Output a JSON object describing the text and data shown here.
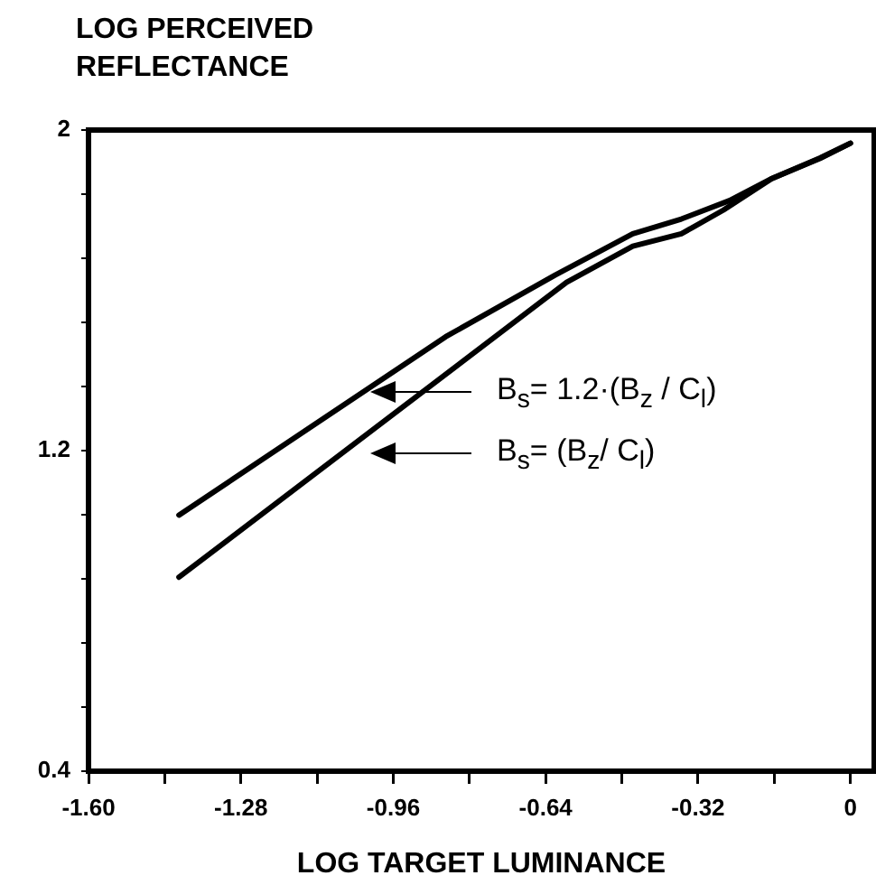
{
  "chart_data": {
    "type": "line",
    "xlabel": "LOG TARGET LUMINANCE",
    "ylabel": "LOG PERCEIVED REFLECTANCE",
    "xlim": [
      -1.6,
      0.05
    ],
    "ylim": [
      0.4,
      2
    ],
    "xticks": [
      {
        "value": -1.6,
        "label": "-1.60"
      },
      {
        "value": -1.44,
        "label": null
      },
      "-1.28",
      {
        "value": -1.12,
        "label": null
      },
      -0.96,
      {
        "value": -0.8,
        "label": null
      },
      -0.64,
      {
        "value": -0.48,
        "label": null
      },
      -0.32,
      {
        "value": -0.16,
        "label": null
      },
      0
    ],
    "yticks": [
      0.4,
      {
        "value": 0.56,
        "label": null
      },
      {
        "value": 0.72,
        "label": null
      },
      {
        "value": 0.88,
        "label": null
      },
      {
        "value": 1.04,
        "label": null
      },
      1.2,
      {
        "value": 1.36,
        "label": null
      },
      {
        "value": 1.52,
        "label": null
      },
      {
        "value": 1.68,
        "label": null
      },
      {
        "value": 1.84,
        "label": null
      },
      2
    ],
    "grid": false,
    "legend": false,
    "marker": "none",
    "line_style": "solid",
    "series": [
      {
        "color": "#000000",
        "x": [
          -1.41,
          -0.85,
          -0.62,
          -0.457,
          -0.355,
          -0.254,
          -0.165,
          -0.064,
          0
        ],
        "values": [
          1.039,
          1.484,
          1.638,
          1.741,
          1.778,
          1.824,
          1.879,
          1.929,
          1.967
        ]
      },
      {
        "color": "#000000",
        "x": [
          -1.41,
          -0.596,
          -0.457,
          -0.355,
          -0.267,
          -0.165,
          -0.064,
          0
        ],
        "values": [
          0.884,
          1.62,
          1.71,
          1.741,
          1.8,
          1.879,
          1.93,
          1.967
        ]
      }
    ],
    "annotations": [
      "B$_{s}$= 1.2·(B$_{z}$ / C$_{l}$)",
      "B$_{s}$= (B$_{z}$/ C$_{l}$)"
    ]
  }
}
